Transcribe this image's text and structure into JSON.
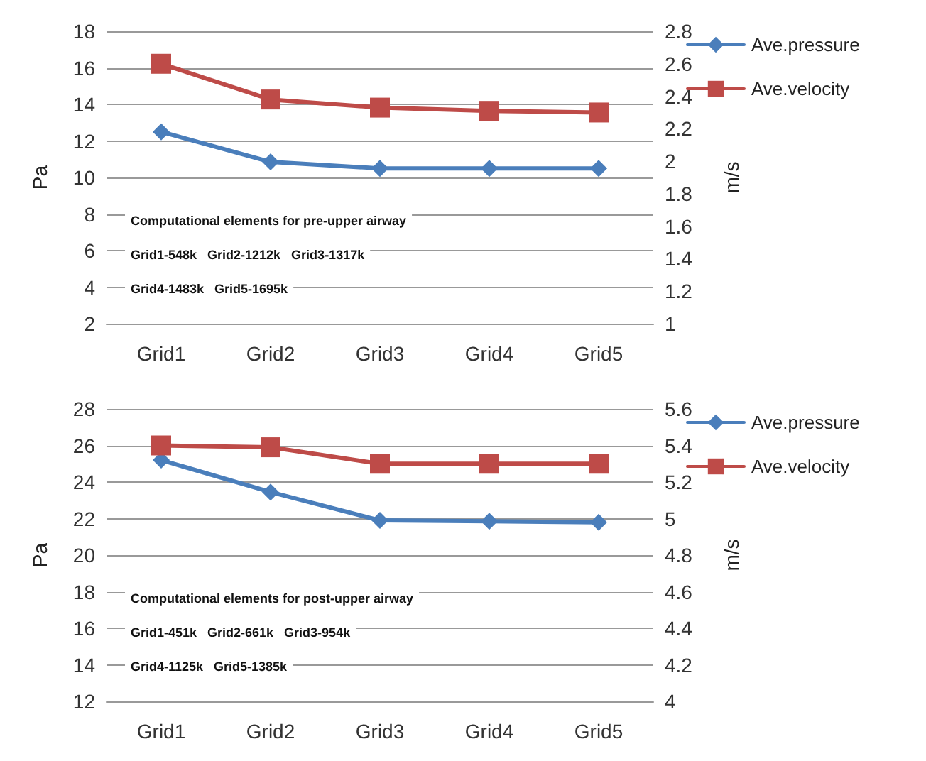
{
  "chart_data": [
    {
      "type": "line",
      "categories": [
        "Grid1",
        "Grid2",
        "Grid3",
        "Grid4",
        "Grid5"
      ],
      "ylabel": "Pa",
      "y2label": "m/s",
      "ylim": [
        2,
        18
      ],
      "yticks": [
        2,
        4,
        6,
        8,
        10,
        12,
        14,
        16,
        18
      ],
      "y2lim": [
        1,
        2.8
      ],
      "y2ticks": [
        1,
        1.2,
        1.4,
        1.6,
        1.8,
        2,
        2.2,
        2.4,
        2.6,
        2.8
      ],
      "series": [
        {
          "name": "Ave.pressure",
          "color": "#4a7ebb",
          "marker": "diamond",
          "values": [
            12.5,
            10.85,
            10.5,
            10.5,
            10.5
          ]
        },
        {
          "name": "Ave.velocity",
          "color": "#be4b48",
          "marker": "square",
          "axis": "y2",
          "values": [
            2.6,
            2.38,
            2.33,
            2.31,
            2.3
          ]
        }
      ],
      "annotations": [
        "Computational elements for pre-upper airway",
        "Grid1-548k   Grid2-1212k   Grid3-1317k",
        "Grid4-1483k   Grid5-1695k"
      ],
      "grid": "y",
      "legend": "right",
      "line_style": "solid"
    },
    {
      "type": "line",
      "categories": [
        "Grid1",
        "Grid2",
        "Grid3",
        "Grid4",
        "Grid5"
      ],
      "ylabel": "Pa",
      "y2label": "m/s",
      "ylim": [
        12,
        28
      ],
      "yticks": [
        12,
        14,
        16,
        18,
        20,
        22,
        24,
        26,
        28
      ],
      "y2lim": [
        4,
        5.6
      ],
      "y2ticks": [
        4,
        4.2,
        4.4,
        4.6,
        4.8,
        5,
        5.2,
        5.4,
        5.6
      ],
      "series": [
        {
          "name": "Ave.pressure",
          "color": "#4a7ebb",
          "marker": "diamond",
          "values": [
            25.2,
            23.45,
            21.9,
            21.85,
            21.8
          ]
        },
        {
          "name": "Ave.velocity",
          "color": "#be4b48",
          "marker": "square",
          "axis": "y2",
          "values": [
            5.4,
            5.39,
            5.3,
            5.3,
            5.3
          ]
        }
      ],
      "annotations": [
        "Computational elements for post-upper airway",
        "Grid1-451k   Grid2-661k   Grid3-954k",
        "Grid4-1125k   Grid5-1385k"
      ],
      "grid": "y",
      "legend": "right",
      "line_style": "solid"
    }
  ]
}
